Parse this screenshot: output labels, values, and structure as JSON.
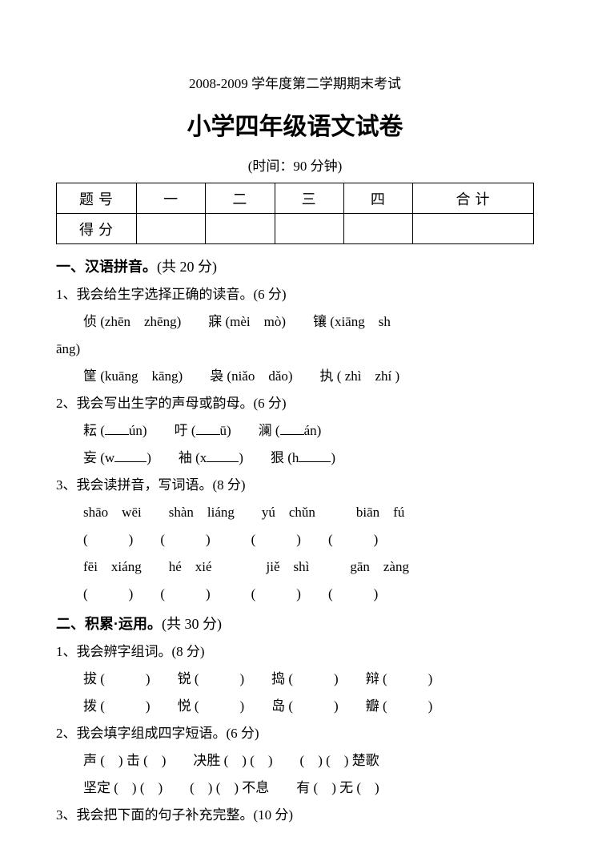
{
  "header": {
    "subtitle": "2008-2009 学年度第二学期期末考试",
    "title": "小学四年级语文试卷",
    "time": "(时间：90 分钟)"
  },
  "score_table": {
    "row1": [
      "题号",
      "一",
      "二",
      "三",
      "四",
      "合计"
    ],
    "row2_label": "得分"
  },
  "s1": {
    "head_bold": "一、汉语拼音。",
    "head_rest": "(共 20 分)",
    "q1": {
      "prompt": "1、我会给生字选择正确的读音。(6 分)",
      "line1a": "侦 (zhēn　zhēng)　　寐 (mèi　mò)　　镶 (xiāng　sh",
      "line1b": "āng)",
      "line2": "筐 (kuāng　kāng)　　袅 (niǎo　dǎo)　　执 ( zhì　zhí )"
    },
    "q2": {
      "prompt": "2、我会写出生字的声母或韵母。(6 分)",
      "l1_a": "耘 (",
      "l1_b": "ún)　　吁 (",
      "l1_c": "ū)　　澜 (",
      "l1_d": "án)",
      "l2_a": "妄 (w",
      "l2_b": ")　　袖 (x",
      "l2_c": ")　　狠 (h",
      "l2_d": ")"
    },
    "q3": {
      "prompt": "3、我会读拼音，写词语。(8 分)",
      "pin1": "shāo　wēi　　shàn　liáng　　yú　chǔn　　　biān　fú",
      "pin2": "fēi　xiáng　　hé　xié　　　　jiě　shì　　　gān　zàng",
      "par": "(　　　)　　(　　　)　　　(　　　)　　(　　　)"
    }
  },
  "s2": {
    "head_bold": "二、积累·运用。",
    "head_rest": "(共 30 分)",
    "q1": {
      "prompt": "1、我会辨字组词。(8 分)",
      "l1": "拔 (　　　)　　锐 (　　　)　　捣 (　　　)　　辩 (　　　)",
      "l2": "拨 (　　　)　　悦 (　　　)　　岛 (　　　)　　瓣 (　　　)"
    },
    "q2": {
      "prompt": "2、我会填字组成四字短语。(6 分)",
      "l1": "声 (　) 击 (　)　　决胜 (　) (　)　　(　) (　) 楚歌",
      "l2": "坚定 (　) (　)　　(　) (　) 不息　　有 (　) 无 (　)"
    },
    "q3": {
      "prompt": "3、我会把下面的句子补充完整。(10 分)"
    }
  },
  "colors": {
    "background": "#ffffff",
    "text": "#000000",
    "border": "#000000"
  }
}
